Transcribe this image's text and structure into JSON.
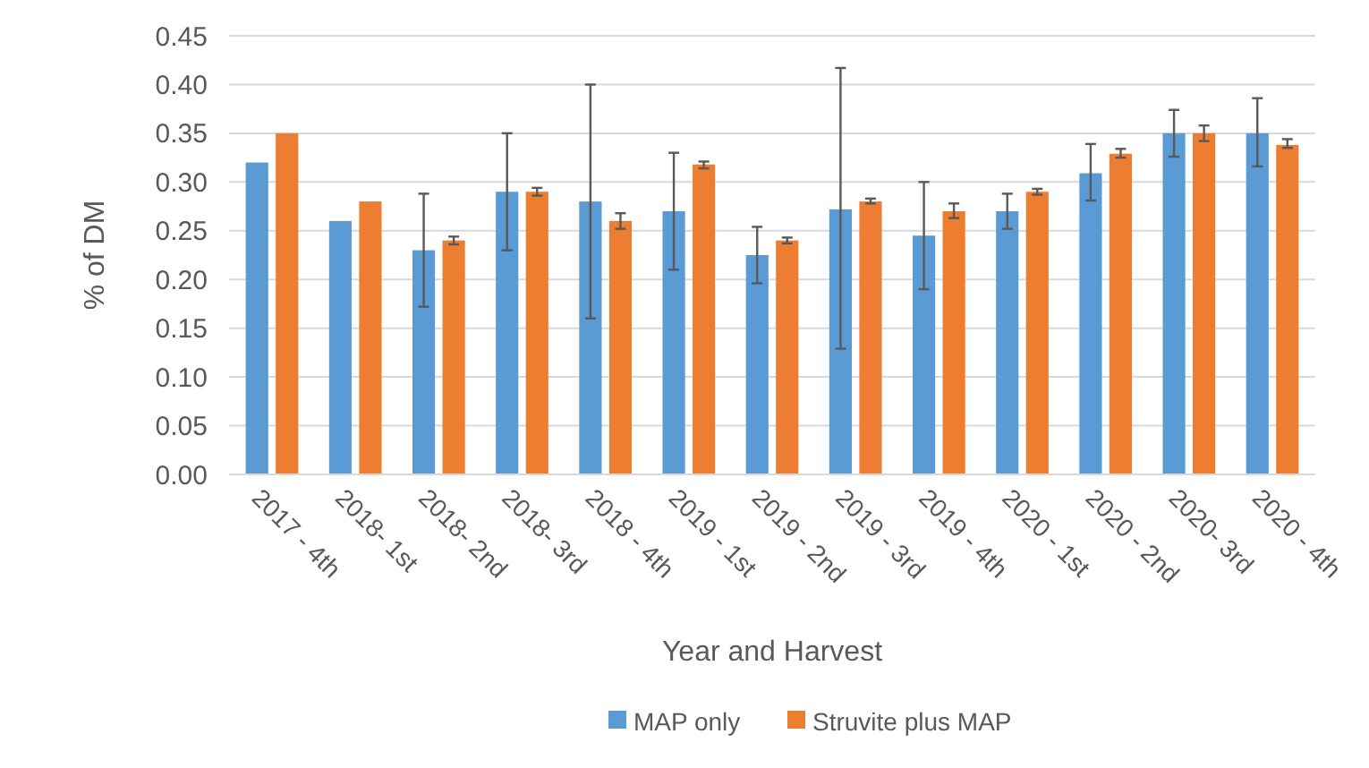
{
  "chart_data": {
    "type": "bar",
    "xlabel": "Year and Harvest",
    "ylabel": "% of DM",
    "categories": [
      "2017 - 4th",
      "2018- 1st",
      "2018- 2nd",
      "2018- 3rd",
      "2018 - 4th",
      "2019 - 1st",
      "2019 - 2nd",
      "2019 - 3rd",
      "2019 - 4th",
      "2020 - 1st",
      "2020 - 2nd",
      "2020- 3rd",
      "2020 - 4th"
    ],
    "series": [
      {
        "name": "MAP only",
        "color": "#5b9bd5",
        "values": [
          0.32,
          0.26,
          0.23,
          0.29,
          0.28,
          0.27,
          0.225,
          0.272,
          0.245,
          0.27,
          0.309,
          0.35,
          0.35
        ],
        "errors": [
          null,
          null,
          [
            0.172,
            0.288
          ],
          [
            0.23,
            0.35
          ],
          [
            0.16,
            0.4
          ],
          [
            0.21,
            0.33
          ],
          [
            0.196,
            0.254
          ],
          [
            0.129,
            0.417
          ],
          [
            0.19,
            0.3
          ],
          [
            0.252,
            0.288
          ],
          [
            0.281,
            0.339
          ],
          [
            0.326,
            0.374
          ],
          [
            0.316,
            0.386
          ]
        ]
      },
      {
        "name": "Struvite plus MAP",
        "color": "#ed7d31",
        "values": [
          0.35,
          0.28,
          0.24,
          0.29,
          0.26,
          0.318,
          0.24,
          0.28,
          0.27,
          0.29,
          0.329,
          0.35,
          0.338
        ],
        "errors": [
          null,
          null,
          [
            0.236,
            0.244
          ],
          [
            0.286,
            0.294
          ],
          [
            0.252,
            0.268
          ],
          [
            0.314,
            0.321
          ],
          [
            0.237,
            0.243
          ],
          [
            0.278,
            0.283
          ],
          [
            0.263,
            0.278
          ],
          [
            0.287,
            0.293
          ],
          [
            0.325,
            0.334
          ],
          [
            0.342,
            0.358
          ],
          [
            0.335,
            0.344
          ]
        ]
      }
    ],
    "ylim": [
      0,
      0.45
    ],
    "yticks": [
      {
        "value": 0,
        "label": "0.00"
      },
      {
        "value": 0.05,
        "label": "0.05"
      },
      {
        "value": 0.1,
        "label": "0.10"
      },
      {
        "value": 0.15,
        "label": "0.15"
      },
      {
        "value": 0.2,
        "label": "0.20"
      },
      {
        "value": 0.25,
        "label": "0.25"
      },
      {
        "value": 0.3,
        "label": "0.30"
      },
      {
        "value": 0.35,
        "label": "0.35"
      },
      {
        "value": 0.4,
        "label": "0.40"
      },
      {
        "value": 0.45,
        "label": "0.45"
      }
    ],
    "grid": "y",
    "legend": "bottom"
  }
}
